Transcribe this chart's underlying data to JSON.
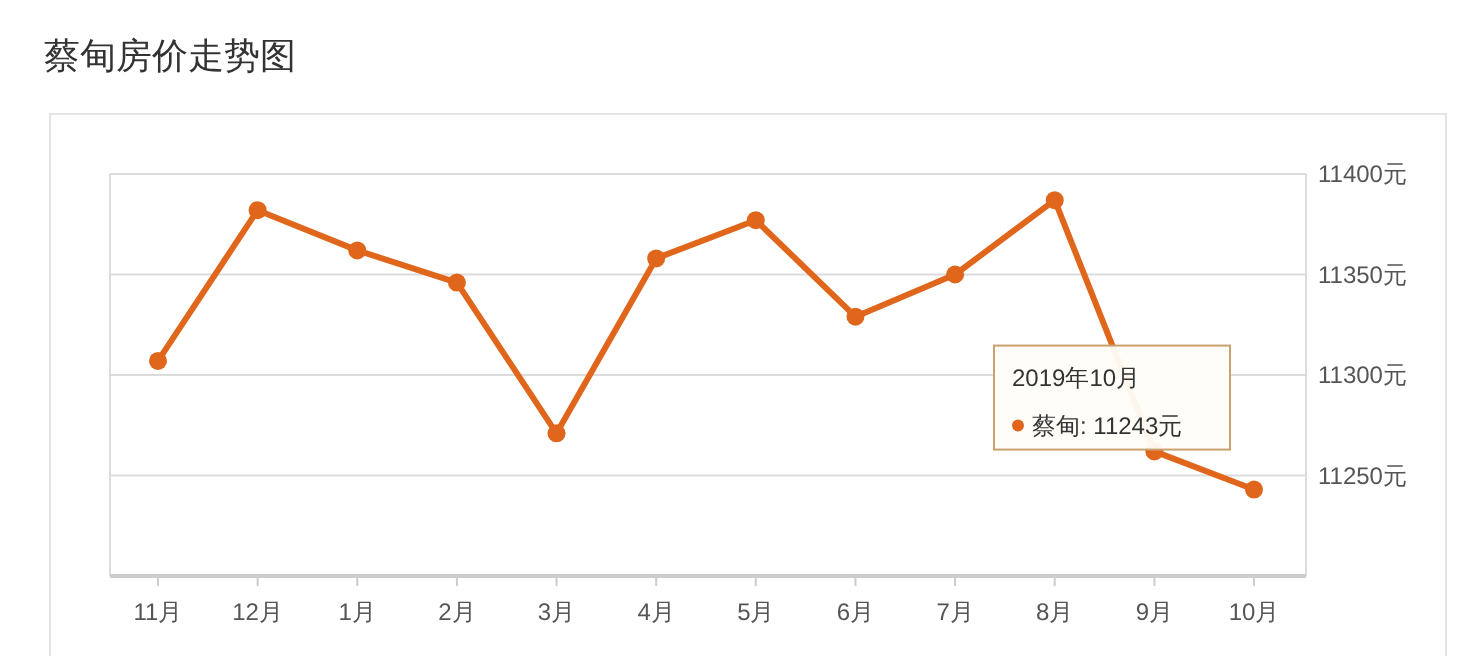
{
  "chart_data": {
    "type": "line",
    "title": "蔡甸房价走势图",
    "categories": [
      "11月",
      "12月",
      "1月",
      "2月",
      "3月",
      "4月",
      "5月",
      "6月",
      "7月",
      "8月",
      "9月",
      "10月"
    ],
    "series": [
      {
        "color": "#e0661c",
        "values": [
          11307,
          11382,
          11362,
          11346,
          11271,
          11358,
          11377,
          11329,
          11350,
          11387,
          11262,
          11243
        ]
      }
    ],
    "ylim": [
      11200,
      11400
    ],
    "yticks": [
      {
        "value": 11250,
        "label": "11250元"
      },
      {
        "value": 11300,
        "label": "11300元"
      },
      {
        "value": 11350,
        "label": "11350元"
      },
      {
        "value": 11400,
        "label": "11400元"
      }
    ],
    "grid": "y",
    "marker": "circle",
    "line_style": "solid",
    "annotations": [
      "2019年10月",
      "蔡甸: 11243元"
    ]
  }
}
